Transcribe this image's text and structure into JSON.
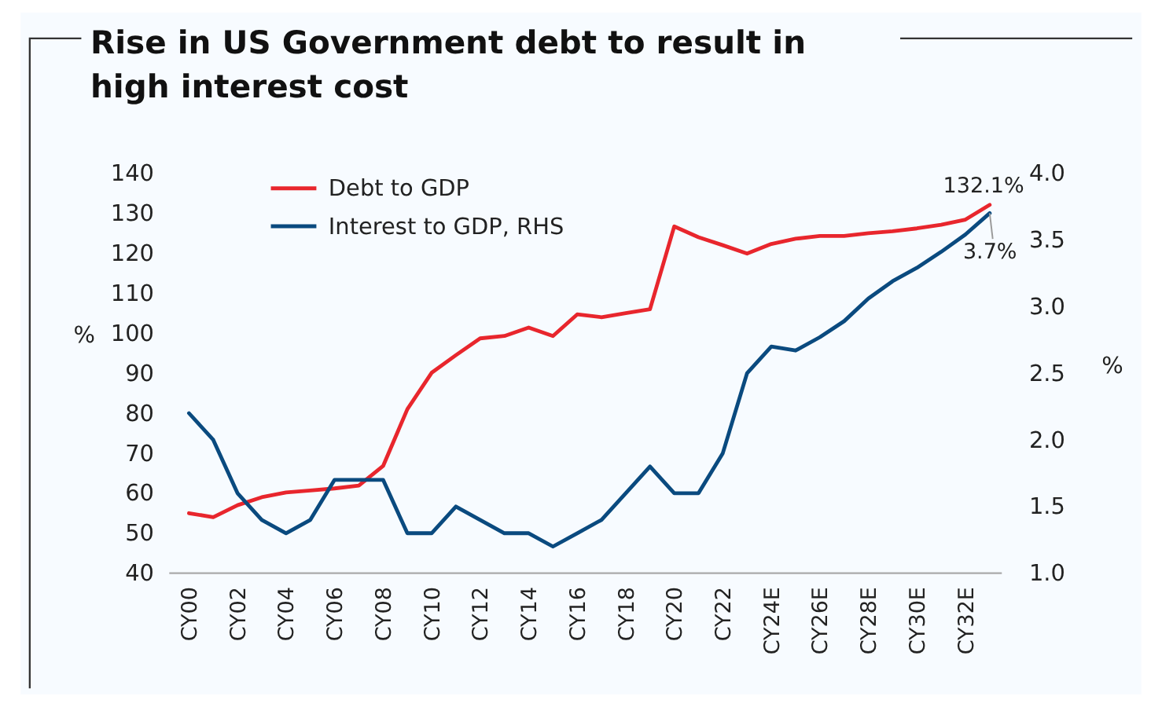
{
  "chart_data": {
    "type": "line",
    "title": "Rise in US Government debt to result in high interest cost",
    "ylabel": "%",
    "y2label": "%",
    "categories": [
      "CY00",
      null,
      "CY02",
      null,
      "CY04",
      null,
      "CY06",
      null,
      "CY08",
      null,
      "CY10",
      null,
      "CY12",
      null,
      "CY14",
      null,
      "CY16",
      null,
      "CY18",
      null,
      "CY20",
      null,
      "CY22",
      null,
      "CY24E",
      null,
      "CY26E",
      null,
      "CY28E",
      null,
      "CY30E",
      null,
      "CY32E",
      null
    ],
    "series": [
      {
        "name": "Debt to GDP",
        "color": "#e8262d",
        "values": [
          55,
          54,
          57,
          59,
          60.2,
          60.7,
          61.2,
          61.9,
          66.8,
          81,
          90.1,
          94.5,
          98.7,
          99.3,
          101.4,
          99.3,
          104.7,
          104,
          105,
          106,
          126.7,
          124,
          122,
          119.9,
          122.3,
          123.6,
          124.3,
          124.3,
          125,
          125.5,
          126.2,
          127.1,
          128.4,
          132.1
        ],
        "value_labels": [
          null,
          null,
          null,
          null,
          null,
          null,
          null,
          null,
          null,
          null,
          null,
          null,
          null,
          null,
          null,
          null,
          null,
          null,
          null,
          null,
          null,
          null,
          null,
          null,
          null,
          null,
          null,
          null,
          null,
          null,
          null,
          null,
          null,
          "132.1%"
        ]
      },
      {
        "name": "Interest to GDP, RHS",
        "color": "#0a4a7f",
        "axis": "y2",
        "values": [
          2.2,
          2.0,
          1.6,
          1.4,
          1.3,
          1.4,
          1.7,
          1.7,
          1.7,
          1.3,
          1.3,
          1.5,
          1.4,
          1.3,
          1.3,
          1.2,
          1.3,
          1.4,
          1.6,
          1.8,
          1.6,
          1.6,
          1.9,
          2.5,
          2.7,
          2.67,
          2.77,
          2.89,
          3.06,
          3.19,
          3.29,
          3.41,
          3.54,
          3.7
        ],
        "value_labels": [
          null,
          null,
          null,
          null,
          null,
          null,
          null,
          null,
          null,
          null,
          null,
          null,
          null,
          null,
          null,
          null,
          null,
          null,
          null,
          null,
          null,
          null,
          null,
          null,
          null,
          null,
          null,
          null,
          null,
          null,
          null,
          null,
          null,
          "3.7%"
        ]
      }
    ],
    "ylim": [
      40,
      140
    ],
    "yticks": [
      40,
      50,
      60,
      70,
      80,
      90,
      100,
      110,
      120,
      130,
      140
    ],
    "y2lim": [
      1.0,
      4.0
    ],
    "y2ticks": [
      {
        "value": 1,
        "label": "1.0"
      },
      {
        "value": 1.5,
        "label": "1.5"
      },
      {
        "value": 2,
        "label": "2.0"
      },
      {
        "value": 2.5,
        "label": "2.5"
      },
      {
        "value": 3,
        "label": "3.0"
      },
      {
        "value": 3.5,
        "label": "3.5"
      },
      {
        "value": 4,
        "label": "4.0"
      }
    ],
    "legend": "top left",
    "grid": false,
    "marker": "none",
    "line_style": "solid"
  }
}
